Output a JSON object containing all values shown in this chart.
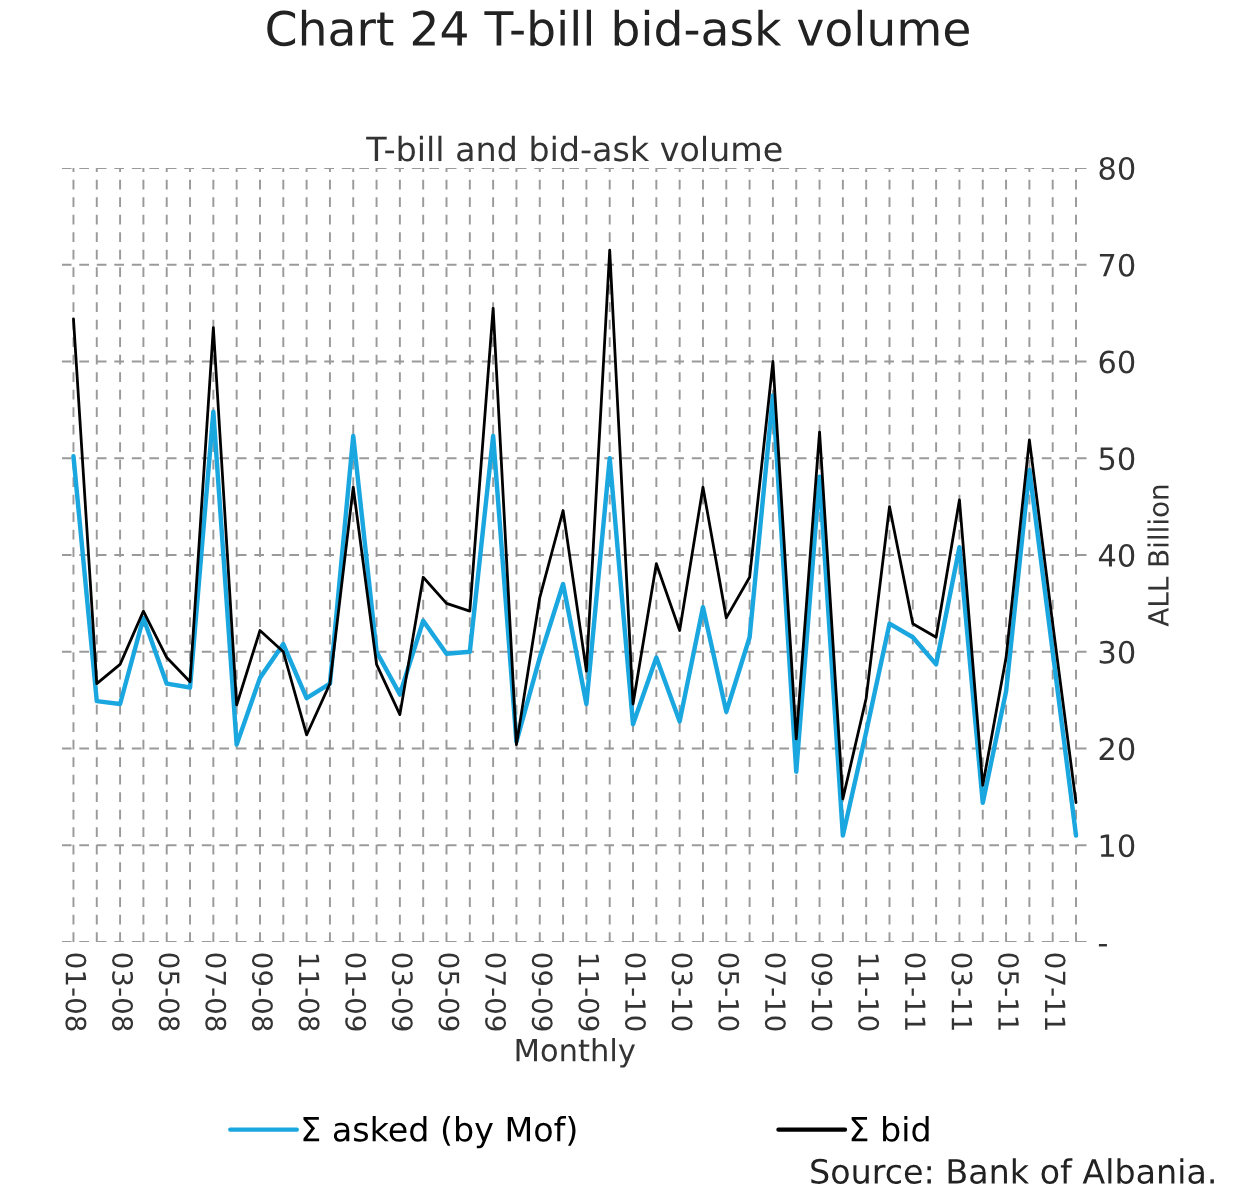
{
  "chart_data": {
    "type": "line",
    "title": "Chart 24 T-bill bid-ask volume",
    "subtitle": "T-bill and bid-ask volume",
    "xlabel": "Monthly",
    "ylabel": "ALL Billion",
    "categories": [
      "01-08",
      null,
      "03-08",
      null,
      "05-08",
      null,
      "07-08",
      null,
      "09-08",
      null,
      "11-08",
      null,
      "01-09",
      null,
      "03-09",
      null,
      "05-09",
      null,
      "07-09",
      null,
      "09-09",
      null,
      "11-09",
      null,
      "01-10",
      null,
      "03-10",
      null,
      "05-10",
      null,
      "07-10",
      null,
      "09-10",
      null,
      "11-10",
      null,
      "01-11",
      null,
      "03-11",
      null,
      "05-11",
      null,
      "07-11",
      null
    ],
    "series": [
      {
        "name": "Σ asked (by Mof)",
        "color": "#1aa7e0",
        "values": [
          50.2,
          24.9,
          24.6,
          33.5,
          26.7,
          26.3,
          54.8,
          20.4,
          27.3,
          30.8,
          25.2,
          26.7,
          52.3,
          30,
          25.6,
          33.2,
          29.8,
          30,
          52.3,
          20.7,
          29.4,
          37,
          24.6,
          50,
          22.5,
          29.4,
          22.8,
          34.6,
          23.8,
          31.5,
          56.5,
          17.6,
          48.1,
          11,
          21.7,
          32.9,
          31.5,
          28.7,
          40.8,
          14.4,
          25.9,
          48.8,
          30,
          11
        ]
      },
      {
        "name": "Σ bid",
        "color": "#000000",
        "values": [
          64.4,
          26.7,
          28.7,
          34.2,
          29.4,
          26.9,
          63.5,
          24.5,
          32.2,
          30,
          21.4,
          26.7,
          47,
          28.7,
          23.5,
          37.7,
          35,
          34.2,
          65.5,
          20.4,
          35.6,
          44.6,
          28,
          71.5,
          24.6,
          39.1,
          32.2,
          47,
          33.5,
          37.7,
          60,
          21,
          52.7,
          14.8,
          25.2,
          45,
          32.9,
          31.5,
          45.7,
          16.2,
          29.4,
          51.9,
          32.9,
          14.4
        ]
      }
    ],
    "ylim": [
      0,
      80
    ],
    "yticks": [
      {
        "value": 0,
        "label": "-"
      },
      10,
      20,
      30,
      40,
      50,
      60,
      70,
      80
    ],
    "grid": true,
    "legend": "bottom",
    "line_style": "solid",
    "marker": "none",
    "annotations": [
      "Source: Bank of Albania."
    ]
  }
}
